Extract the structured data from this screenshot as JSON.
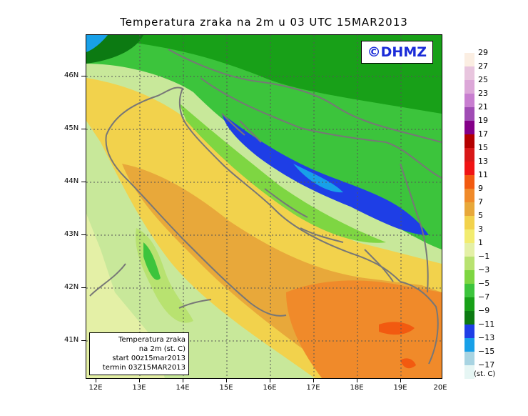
{
  "title": "Temperatura zraka na 2m u 03 UTC 15MAR2013",
  "logo": "©DHMZ",
  "info": {
    "line1": "Temperatura zraka",
    "line2": "na 2m (st. C)",
    "line3": "start 00z15mar2013",
    "line4": "termin 03Z15MAR2013"
  },
  "lat_labels": [
    "46N",
    "45N",
    "44N",
    "43N",
    "42N",
    "41N"
  ],
  "lon_labels": [
    "12E",
    "13E",
    "14E",
    "15E",
    "16E",
    "17E",
    "18E",
    "19E",
    "20E"
  ],
  "legend": {
    "unit": "(st. C)",
    "labels": [
      "29",
      "27",
      "25",
      "23",
      "21",
      "19",
      "17",
      "15",
      "13",
      "11",
      "9",
      "7",
      "5",
      "3",
      "1",
      "−1",
      "−3",
      "−5",
      "−7",
      "−9",
      "−11",
      "−13",
      "−15",
      "−17"
    ],
    "colors": [
      "#fbeee2",
      "#e8c5de",
      "#dca7d8",
      "#c87ed0",
      "#a04cb4",
      "#840088",
      "#b40000",
      "#d81818",
      "#f01414",
      "#f25a10",
      "#f08a2a",
      "#e8a83a",
      "#f2d24c",
      "#f2ec70",
      "#e4f0a6",
      "#b8e270",
      "#7ed642",
      "#3cc43c",
      "#18a018",
      "#0c7a12",
      "#1e3ee6",
      "#18a0e8",
      "#a8d4e2",
      "#e6f6f4"
    ]
  },
  "colors": {
    "coast": "#777777",
    "grid": "#555555",
    "logo_text": "#1a2bd8"
  }
}
